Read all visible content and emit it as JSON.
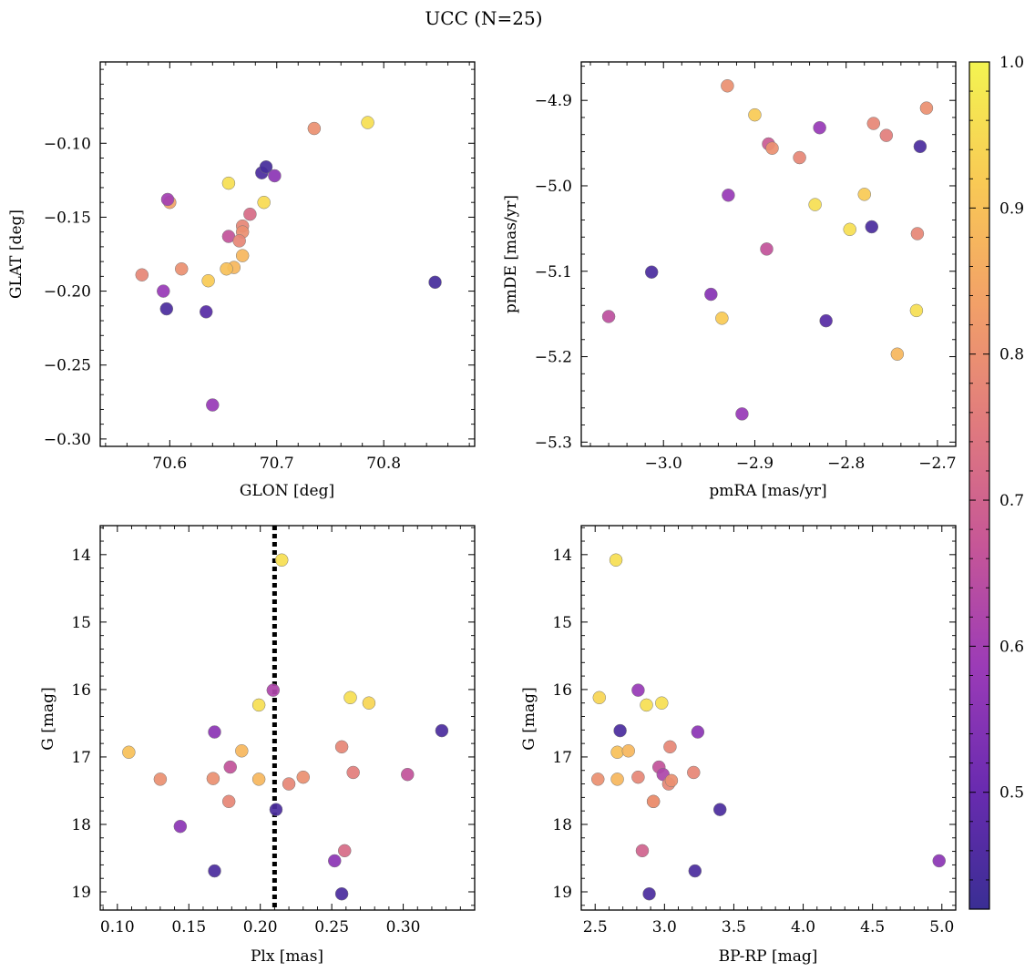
{
  "figure_title": "UCC (N=25)",
  "colorbar": {
    "min": 0.42,
    "max": 1.0,
    "ticks": [
      0.5,
      0.6,
      0.7,
      0.8,
      0.9,
      1.0
    ],
    "tick_labels": [
      "0.5",
      "0.6",
      "0.7",
      "0.8",
      "0.9",
      "1.0"
    ],
    "colormap": "plasma",
    "colors": [
      "#3a2e94",
      "#6a2bb0",
      "#9b3bb7",
      "#c65697",
      "#e07a7e",
      "#f2a068",
      "#f9c955",
      "#f3f451"
    ]
  },
  "panel_labels": {
    "p1_x": "GLON [deg]",
    "p1_y": "GLAT [deg]",
    "p2_x": "pmRA [mas/yr]",
    "p2_y": "pmDE [mas/yr]",
    "p3_x": "Plx [mas]",
    "p3_y": "G [mag]",
    "p4_x": "BP-RP [mag]",
    "p4_y": "G [mag]"
  },
  "chart_data": [
    {
      "type": "scatter",
      "xlabel": "GLON [deg]",
      "ylabel": "GLAT [deg]",
      "xlim": [
        70.535,
        70.885
      ],
      "ylim": [
        -0.305,
        -0.045
      ],
      "xticks": [
        70.6,
        70.7,
        70.8
      ],
      "xtick_labels": [
        "70.6",
        "70.7",
        "70.8"
      ],
      "yticks": [
        -0.3,
        -0.25,
        -0.2,
        -0.15,
        -0.1
      ],
      "ytick_labels": [
        "−0.30",
        "−0.25",
        "−0.20",
        "−0.15",
        "−0.10"
      ],
      "x": [
        70.785,
        70.735,
        70.655,
        70.688,
        70.6,
        70.598,
        70.675,
        70.668,
        70.668,
        70.655,
        70.665,
        70.668,
        70.611,
        70.66,
        70.653,
        70.574,
        70.636,
        70.594,
        70.597,
        70.634,
        70.64,
        70.848,
        70.686,
        70.69,
        70.698
      ],
      "y": [
        -0.086,
        -0.09,
        -0.127,
        -0.14,
        -0.14,
        -0.138,
        -0.148,
        -0.156,
        -0.16,
        -0.163,
        -0.166,
        -0.176,
        -0.185,
        -0.184,
        -0.185,
        -0.189,
        -0.193,
        -0.2,
        -0.212,
        -0.214,
        -0.277,
        -0.194,
        -0.12,
        -0.116,
        -0.122
      ],
      "c": [
        0.96,
        0.8,
        0.96,
        0.95,
        0.84,
        0.6,
        0.72,
        0.78,
        0.8,
        0.66,
        0.78,
        0.88,
        0.8,
        0.88,
        0.9,
        0.78,
        0.92,
        0.58,
        0.45,
        0.47,
        0.58,
        0.44,
        0.45,
        0.44,
        0.56
      ]
    },
    {
      "type": "scatter",
      "xlabel": "pmRA [mas/yr]",
      "ylabel": "pmDE [mas/yr]",
      "xlim": [
        -3.09,
        -2.68
      ],
      "ylim": [
        -5.305,
        -4.855
      ],
      "xticks": [
        -3.0,
        -2.9,
        -2.8,
        -2.7
      ],
      "xtick_labels": [
        "−3.0",
        "−2.9",
        "−2.8",
        "−2.7"
      ],
      "yticks": [
        -5.3,
        -5.2,
        -5.1,
        -5.0,
        -4.9
      ],
      "ytick_labels": [
        "−5.3",
        "−5.2",
        "−5.1",
        "−5.0",
        "−4.9"
      ],
      "x": [
        -2.93,
        -2.9,
        -2.712,
        -2.77,
        -2.829,
        -2.756,
        -2.885,
        -2.881,
        -2.851,
        -2.719,
        -2.929,
        -2.78,
        -2.834,
        -2.772,
        -2.796,
        -2.722,
        -2.887,
        -3.013,
        -2.948,
        -3.06,
        -2.936,
        -2.822,
        -2.723,
        -2.744,
        -2.914
      ],
      "y": [
        -4.883,
        -4.917,
        -4.909,
        -4.927,
        -4.932,
        -4.941,
        -4.951,
        -4.956,
        -4.967,
        -4.954,
        -5.011,
        -5.01,
        -5.022,
        -5.048,
        -5.051,
        -5.056,
        -5.074,
        -5.101,
        -5.127,
        -5.153,
        -5.155,
        -5.158,
        -5.146,
        -5.197,
        -5.267
      ],
      "c": [
        0.8,
        0.92,
        0.8,
        0.78,
        0.58,
        0.76,
        0.68,
        0.8,
        0.78,
        0.45,
        0.58,
        0.92,
        0.96,
        0.45,
        0.96,
        0.78,
        0.66,
        0.45,
        0.55,
        0.65,
        0.92,
        0.47,
        0.96,
        0.88,
        0.58
      ]
    },
    {
      "type": "scatter",
      "xlabel": "Plx [mas]",
      "ylabel": "G [mag]",
      "xlim": [
        0.088,
        0.35
      ],
      "ylim": [
        19.27,
        13.57
      ],
      "xticks": [
        0.1,
        0.15,
        0.2,
        0.25,
        0.3
      ],
      "xtick_labels": [
        "0.10",
        "0.15",
        "0.20",
        "0.25",
        "0.30"
      ],
      "yticks": [
        14,
        15,
        16,
        17,
        18,
        19
      ],
      "ytick_labels": [
        "14",
        "15",
        "16",
        "17",
        "18",
        "19"
      ],
      "vline": 0.21,
      "x": [
        0.215,
        0.209,
        0.263,
        0.276,
        0.199,
        0.327,
        0.168,
        0.108,
        0.187,
        0.257,
        0.179,
        0.13,
        0.167,
        0.265,
        0.303,
        0.199,
        0.23,
        0.22,
        0.178,
        0.211,
        0.144,
        0.259,
        0.252,
        0.168,
        0.257
      ],
      "y": [
        14.08,
        16.01,
        16.12,
        16.2,
        16.23,
        16.61,
        16.63,
        16.93,
        16.91,
        16.85,
        17.15,
        17.33,
        17.32,
        17.23,
        17.26,
        17.33,
        17.3,
        17.4,
        17.66,
        17.78,
        18.03,
        18.39,
        18.54,
        18.69,
        19.03
      ],
      "c": [
        0.96,
        0.62,
        0.96,
        0.94,
        0.96,
        0.45,
        0.56,
        0.9,
        0.88,
        0.78,
        0.66,
        0.8,
        0.8,
        0.76,
        0.66,
        0.88,
        0.8,
        0.78,
        0.78,
        0.45,
        0.56,
        0.72,
        0.56,
        0.45,
        0.45
      ]
    },
    {
      "type": "scatter",
      "xlabel": "BP-RP [mag]",
      "ylabel": "G [mag]",
      "xlim": [
        2.4,
        5.1
      ],
      "ylim": [
        19.27,
        13.57
      ],
      "xticks": [
        2.5,
        3.0,
        3.5,
        4.0,
        4.5,
        5.0
      ],
      "xtick_labels": [
        "2.5",
        "3.0",
        "3.5",
        "4.0",
        "4.5",
        "5.0"
      ],
      "yticks": [
        14,
        15,
        16,
        17,
        18,
        19
      ],
      "ytick_labels": [
        "14",
        "15",
        "16",
        "17",
        "18",
        "19"
      ],
      "x": [
        2.65,
        2.81,
        2.53,
        2.98,
        2.87,
        2.68,
        3.24,
        2.66,
        2.74,
        3.04,
        2.96,
        2.52,
        2.66,
        2.99,
        2.81,
        3.21,
        3.03,
        3.05,
        2.92,
        3.4,
        2.84,
        4.98,
        3.22,
        2.89,
        2.92
      ],
      "y": [
        14.08,
        16.01,
        16.12,
        16.2,
        16.23,
        16.61,
        16.63,
        16.93,
        16.91,
        16.85,
        17.15,
        17.33,
        17.33,
        17.26,
        17.3,
        17.23,
        17.4,
        17.35,
        17.66,
        17.78,
        18.39,
        18.54,
        18.69,
        19.03,
        17.66
      ],
      "c": [
        0.96,
        0.58,
        0.94,
        0.96,
        0.96,
        0.45,
        0.56,
        0.9,
        0.88,
        0.78,
        0.66,
        0.8,
        0.88,
        0.62,
        0.78,
        0.78,
        0.78,
        0.8,
        0.8,
        0.45,
        0.7,
        0.56,
        0.45,
        0.45,
        0.8
      ]
    }
  ]
}
